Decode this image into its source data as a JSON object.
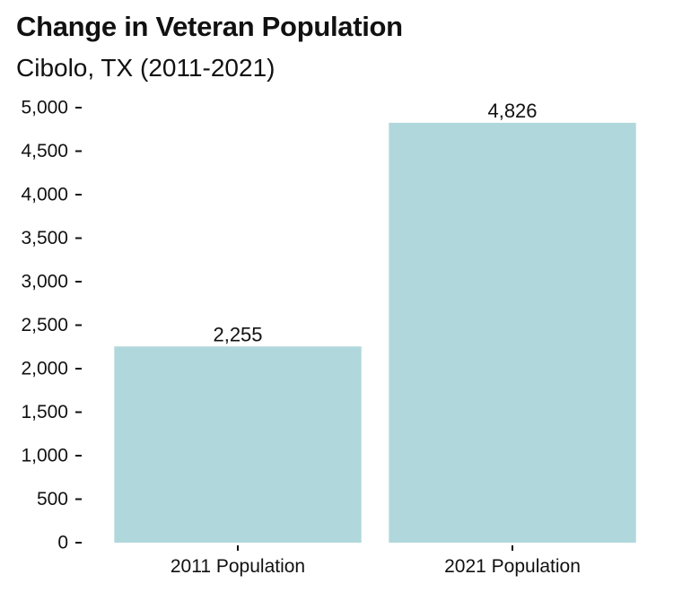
{
  "title": "Change in Veteran Population",
  "subtitle": "Cibolo, TX (2011-2021)",
  "chart_data": {
    "type": "bar",
    "title": "Change in Veteran Population",
    "subtitle": "Cibolo, TX (2011-2021)",
    "categories": [
      "2011 Population",
      "2021 Population"
    ],
    "values": [
      2255,
      4826
    ],
    "data_labels": [
      "2,255",
      "4,826"
    ],
    "xlabel": "",
    "ylabel": "",
    "ylim": [
      0,
      5000
    ],
    "y_ticks": [
      0,
      500,
      1000,
      1500,
      2000,
      2500,
      3000,
      3500,
      4000,
      4500,
      5000
    ],
    "y_tick_labels": [
      "0",
      "500",
      "1,000",
      "1,500",
      "2,000",
      "2,500",
      "3,000",
      "3,500",
      "4,000",
      "4,500",
      "5,000"
    ],
    "grid": false,
    "legend": "none",
    "bar_color": "#b0d8dc"
  }
}
